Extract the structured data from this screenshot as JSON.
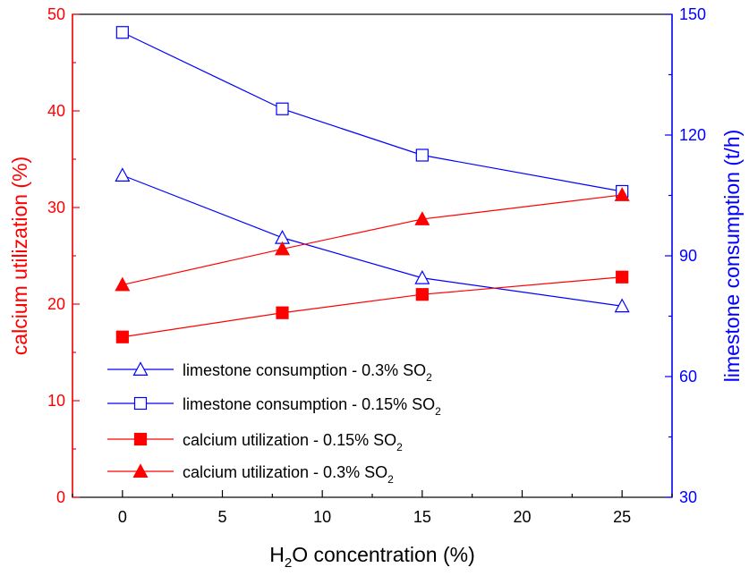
{
  "colors": {
    "left": "#ff0000",
    "right": "#0000ff",
    "axis": "#000000"
  },
  "chart_data": {
    "type": "line",
    "x": [
      0,
      8,
      15,
      25
    ],
    "xlim": [
      -2.5,
      27.5
    ],
    "ylim_left": [
      0,
      50
    ],
    "ylim_right": [
      30,
      150
    ],
    "grid": false,
    "legend_position": "lower-left",
    "x_ticks": [
      "0",
      "5",
      "10",
      "15",
      "20",
      "25"
    ],
    "x_tick_values": [
      0,
      5,
      10,
      15,
      20,
      25
    ],
    "y_left_ticks": [
      "0",
      "10",
      "20",
      "30",
      "40",
      "50"
    ],
    "y_left_tick_values": [
      0,
      10,
      20,
      30,
      40,
      50
    ],
    "y_right_ticks": [
      "30",
      "60",
      "90",
      "120",
      "150"
    ],
    "y_right_tick_values": [
      30,
      60,
      90,
      120,
      150
    ],
    "xlabel": {
      "pre": "H",
      "sub": "2",
      "post": "O concentration (%)"
    },
    "ylabel_left": "calcium utilization (%)",
    "ylabel_right": "limestone consumption (t/h)",
    "series": [
      {
        "name": "limestone consumption - 0.3% SO",
        "name_sub": "2",
        "axis": "right",
        "marker": "triangle-open",
        "color": "#0000ff",
        "values": [
          110,
          94.5,
          84.5,
          77.5
        ]
      },
      {
        "name": "limestone consumption - 0.15% SO",
        "name_sub": "2",
        "axis": "right",
        "marker": "square-open",
        "color": "#0000ff",
        "values": [
          145.5,
          126.5,
          115,
          106
        ]
      },
      {
        "name": "calcium utilization - 0.15% SO",
        "name_sub": "2",
        "axis": "left",
        "marker": "square-filled",
        "color": "#ff0000",
        "values": [
          16.6,
          19.1,
          21.0,
          22.8
        ]
      },
      {
        "name": "calcium utilization - 0.3% SO",
        "name_sub": "2",
        "axis": "left",
        "marker": "triangle-filled",
        "color": "#ff0000",
        "values": [
          22.0,
          25.7,
          28.8,
          31.3
        ]
      }
    ]
  }
}
